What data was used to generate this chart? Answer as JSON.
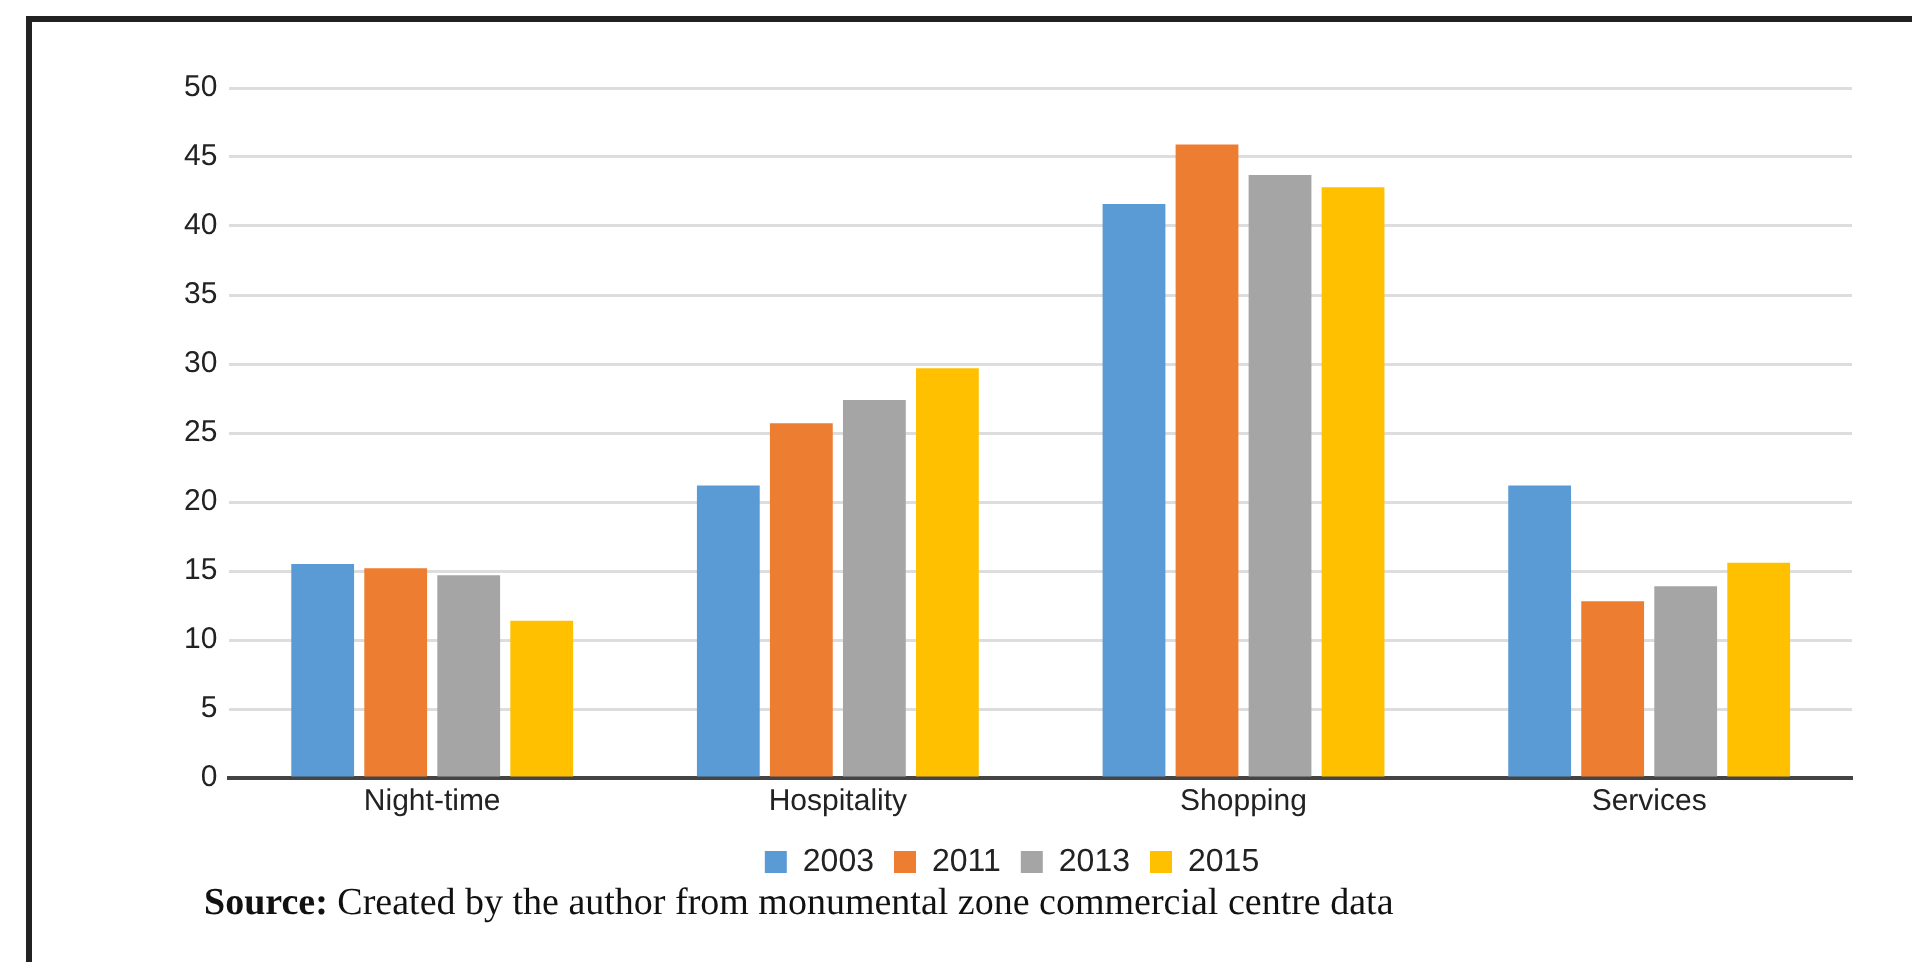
{
  "chart_data": {
    "type": "bar",
    "categories": [
      "Night-time",
      "Hospitality",
      "Shopping",
      "Services"
    ],
    "series": [
      {
        "name": "2003",
        "color": "#5b9bd5",
        "values": [
          15.5,
          21.2,
          41.6,
          21.2
        ]
      },
      {
        "name": "2011",
        "color": "#ed7d31",
        "values": [
          15.2,
          25.7,
          45.9,
          12.8
        ]
      },
      {
        "name": "2013",
        "color": "#a5a5a5",
        "values": [
          14.7,
          27.4,
          43.7,
          13.9
        ]
      },
      {
        "name": "2015",
        "color": "#ffc000",
        "values": [
          11.4,
          29.7,
          42.8,
          15.6
        ]
      }
    ],
    "ylim": [
      0,
      50
    ],
    "yticks": [
      0,
      5,
      10,
      15,
      20,
      25,
      30,
      35,
      40,
      45,
      50
    ],
    "grid": "y",
    "legend": "bottom",
    "annotations": [
      "Source: Created by the author from monumental zone commercial centre data"
    ]
  }
}
